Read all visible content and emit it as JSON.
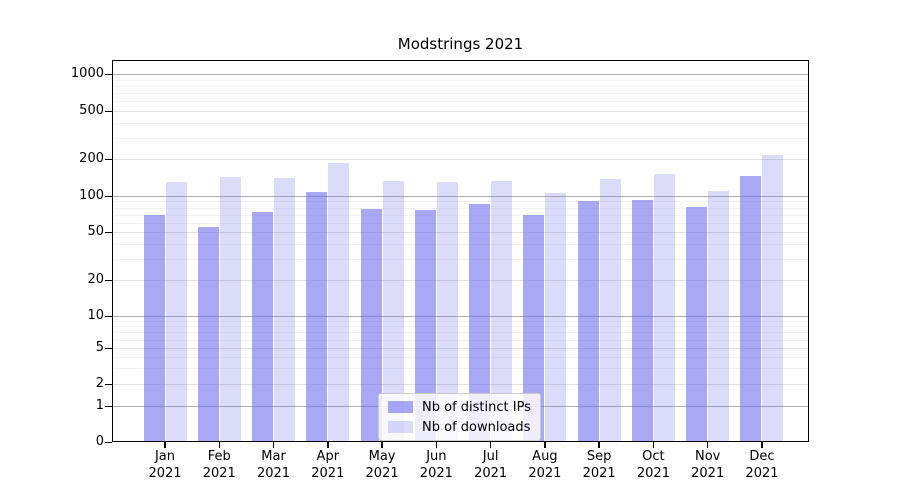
{
  "chart_data": {
    "type": "bar",
    "title": "Modstrings 2021",
    "categories": [
      "Jan",
      "Feb",
      "Mar",
      "Apr",
      "May",
      "Jun",
      "Jul",
      "Aug",
      "Sep",
      "Oct",
      "Nov",
      "Dec"
    ],
    "category_year": "2021",
    "series": [
      {
        "name": "Nb of distinct IPs",
        "color": "rgba(100,100,235,0.56)",
        "values": [
          70,
          55,
          74,
          108,
          78,
          77,
          85,
          70,
          91,
          93,
          81,
          146
        ]
      },
      {
        "name": "Nb of downloads",
        "color": "rgba(100,100,235,0.23)",
        "values": [
          130,
          143,
          140,
          186,
          132,
          130,
          133,
          106,
          138,
          151,
          110,
          215
        ]
      }
    ],
    "yscale": "symlog",
    "yticks": [
      0,
      1,
      2,
      5,
      10,
      20,
      50,
      100,
      200,
      500,
      1000
    ],
    "ylim": [
      0,
      1300
    ],
    "grid": true,
    "legend_position": "lower center"
  },
  "colors": {
    "grid_major": "#b0b0b0",
    "grid_mid": "#e0e0e0",
    "grid_minor": "#f2f2f2",
    "spine": "#000000",
    "legend_border": "#cccccc"
  }
}
